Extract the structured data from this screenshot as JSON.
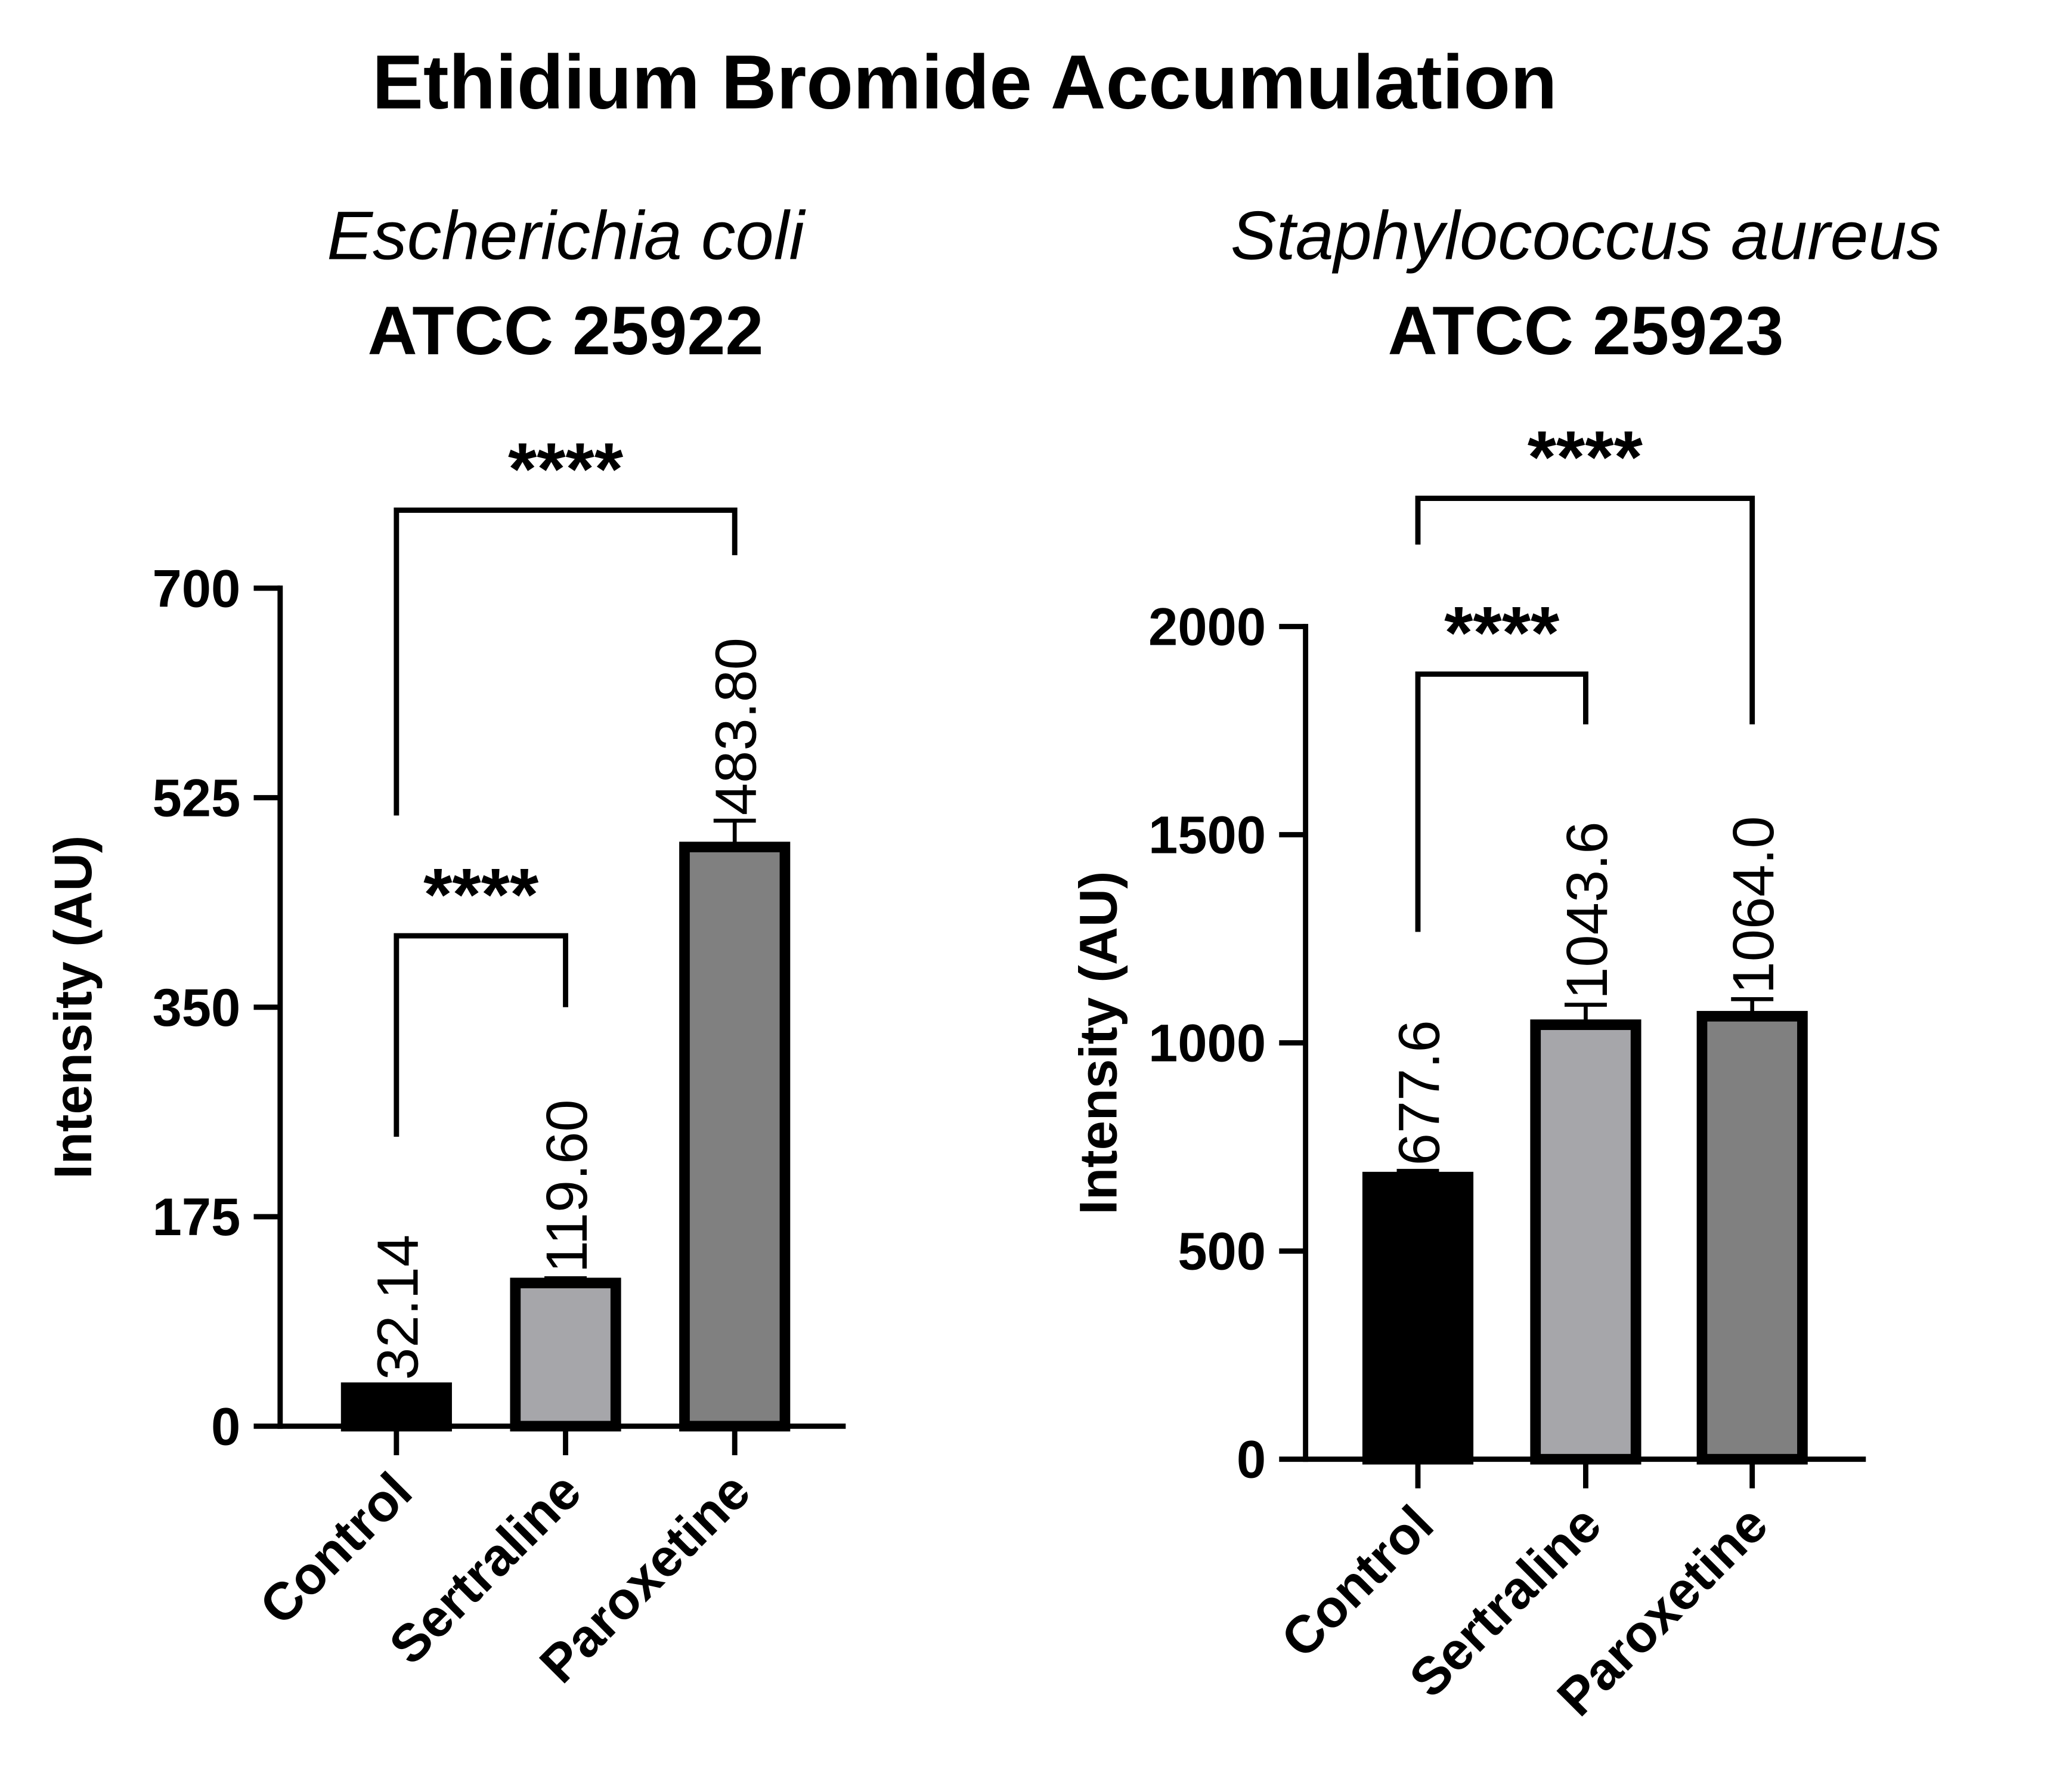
{
  "title": "Ethidium Bromide Accumulation",
  "chart_data": [
    {
      "type": "bar",
      "title": "Escherichia coli",
      "subtitle": "ATCC 25922",
      "y_label": "Intensity (AU)",
      "categories": [
        "Control",
        "Sertraline",
        "Paroxetine"
      ],
      "values": [
        32.14,
        119.6,
        483.8
      ],
      "value_labels": [
        "32.14",
        "119.60",
        "483.80"
      ],
      "errors": [
        2,
        4,
        22
      ],
      "colors": [
        "#000000",
        "#a6a6aa",
        "#808080"
      ],
      "ylim": [
        0,
        700
      ],
      "yticks": [
        0,
        175,
        350,
        525,
        700
      ],
      "comparisons": [
        {
          "groups": [
            0,
            1
          ],
          "label": "****"
        },
        {
          "groups": [
            0,
            2
          ],
          "label": "****"
        }
      ]
    },
    {
      "type": "bar",
      "title": "Staphylococcus aureus",
      "subtitle": "ATCC 25923",
      "y_label": "Intensity (AU)",
      "categories": [
        "Control",
        "Sertraline",
        "Paroxetine"
      ],
      "values": [
        677.6,
        1043.6,
        1064.0
      ],
      "value_labels": [
        "677.6",
        "1043.6",
        "1064.0"
      ],
      "errors": [
        15,
        48,
        41
      ],
      "colors": [
        "#000000",
        "#a6a6aa",
        "#808080"
      ],
      "ylim": [
        0,
        2000
      ],
      "yticks": [
        0,
        500,
        1000,
        1500,
        2000
      ],
      "comparisons": [
        {
          "groups": [
            0,
            1
          ],
          "label": "****"
        },
        {
          "groups": [
            0,
            2
          ],
          "label": "****"
        }
      ]
    }
  ]
}
